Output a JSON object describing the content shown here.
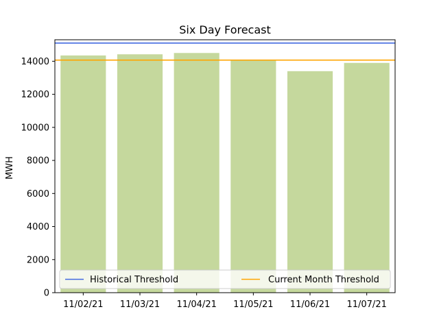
{
  "chart_data": {
    "type": "bar",
    "title": "Six Day Forecast",
    "xlabel": "",
    "ylabel": "MWH",
    "categories": [
      "11/02/21",
      "11/03/21",
      "11/04/21",
      "11/05/21",
      "11/06/21",
      "11/07/21"
    ],
    "values": [
      14350,
      14420,
      14500,
      14050,
      13400,
      13900
    ],
    "ylim": [
      0,
      15300
    ],
    "yticks": [
      0,
      2000,
      4000,
      6000,
      8000,
      10000,
      12000,
      14000
    ],
    "bar_color": "#c5d89d",
    "thresholds": [
      {
        "name": "Historical Threshold",
        "value": 15100,
        "color": "#4169e1"
      },
      {
        "name": "Current Month Threshold",
        "value": 14070,
        "color": "#ffa500"
      }
    ],
    "legend_position": "bottom",
    "grid": false
  }
}
